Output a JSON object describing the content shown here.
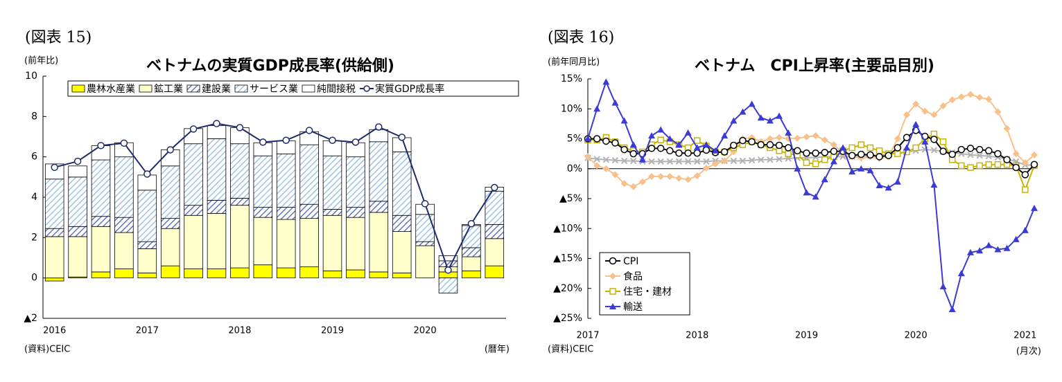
{
  "chart_data": [
    {
      "type": "bar",
      "stacked": true,
      "figure_label": "(図表 15)",
      "y_label": "(前年比)",
      "title": "ベトナムの実質GDP成長率(供給側)",
      "source": "(資料)CEIC",
      "x_unit": "(暦年)",
      "legend": "top",
      "categories": [
        "2016",
        null,
        null,
        null,
        "2017",
        null,
        null,
        null,
        "2018",
        null,
        null,
        null,
        "2019",
        null,
        null,
        null,
        "2020",
        null,
        null,
        null
      ],
      "ylim": [
        -2,
        10
      ],
      "yticks": [
        {
          "value": -2,
          "label": "▲2"
        },
        0,
        2,
        4,
        6,
        8,
        10
      ],
      "series": [
        {
          "name": "農林水産業",
          "color": "#ffff00",
          "values": [
            -0.15,
            0.05,
            0.3,
            0.45,
            0.25,
            0.6,
            0.45,
            0.45,
            0.5,
            0.65,
            0.5,
            0.55,
            0.35,
            0.4,
            0.3,
            0.25,
            0.0,
            0.3,
            0.35,
            0.6
          ]
        },
        {
          "name": "鉱工業",
          "color": "#ffffcc",
          "values": [
            2.05,
            2.0,
            2.25,
            1.8,
            1.2,
            1.85,
            2.65,
            2.75,
            3.1,
            2.35,
            2.4,
            2.4,
            2.75,
            2.6,
            2.95,
            2.05,
            1.6,
            0.25,
            0.7,
            1.35
          ]
        },
        {
          "name": "建設業",
          "color": "#4a5bb5",
          "hatch": true,
          "values": [
            0.4,
            0.5,
            0.5,
            0.75,
            0.35,
            0.5,
            0.5,
            0.65,
            0.35,
            0.5,
            0.6,
            0.7,
            0.3,
            0.5,
            0.55,
            0.8,
            0.2,
            0.3,
            0.45,
            0.7
          ]
        },
        {
          "name": "サービス業",
          "color": "#8fb8e0",
          "hatch": true,
          "values": [
            2.45,
            2.45,
            2.8,
            3.0,
            2.55,
            2.6,
            3.05,
            3.05,
            2.7,
            2.55,
            2.65,
            2.95,
            2.65,
            2.5,
            2.95,
            3.15,
            1.35,
            -0.75,
            1.1,
            1.65
          ]
        },
        {
          "name": "純間接税",
          "color": "#ffffff",
          "values": [
            0.75,
            0.55,
            0.7,
            0.7,
            0.75,
            0.8,
            0.75,
            0.65,
            0.8,
            0.65,
            0.65,
            0.65,
            0.75,
            0.7,
            0.6,
            0.7,
            0.5,
            0.25,
            0.05,
            0.2
          ]
        },
        {
          "name": "実質GDP成長率",
          "type": "line",
          "marker": "circle",
          "color": "#1f2a6b",
          "values": [
            5.48,
            5.78,
            6.56,
            6.68,
            5.15,
            6.35,
            7.38,
            7.65,
            7.45,
            6.73,
            6.82,
            7.31,
            6.82,
            6.73,
            7.48,
            6.97,
            3.68,
            0.39,
            2.69,
            4.48
          ]
        }
      ]
    },
    {
      "type": "line",
      "figure_label": "(図表 16)",
      "y_label": "(前年同月比)",
      "title": "ベトナム　CPI上昇率(主要品目別)",
      "source": "(資料)CEIC",
      "x_unit": "(月次)",
      "legend": "lower left",
      "categories": [
        "2017",
        null,
        null,
        null,
        null,
        null,
        null,
        null,
        null,
        null,
        null,
        null,
        "2018",
        null,
        null,
        null,
        null,
        null,
        null,
        null,
        null,
        null,
        null,
        null,
        "2019",
        null,
        null,
        null,
        null,
        null,
        null,
        null,
        null,
        null,
        null,
        null,
        "2020",
        null,
        null,
        null,
        null,
        null,
        null,
        null,
        null,
        null,
        null,
        null,
        "2021",
        null
      ],
      "ylim": [
        -25,
        15
      ],
      "yticks": [
        {
          "value": -25,
          "label": "▲25%"
        },
        {
          "value": -20,
          "label": "▲20%"
        },
        {
          "value": -15,
          "label": "▲15%"
        },
        {
          "value": -10,
          "label": "▲10%"
        },
        {
          "value": -5,
          "label": "▲5%"
        },
        {
          "value": 0,
          "label": "0%"
        },
        {
          "value": 5,
          "label": "5%"
        },
        {
          "value": 10,
          "label": "10%"
        },
        {
          "value": 15,
          "label": "15%"
        }
      ],
      "series": [
        {
          "color": "#b3b3b3",
          "marker": "x",
          "values": [
            1.8,
            1.6,
            1.5,
            1.4,
            1.3,
            1.3,
            1.2,
            1.2,
            1.2,
            1.2,
            1.2,
            1.2,
            1.2,
            1.2,
            1.3,
            1.3,
            1.3,
            1.3,
            1.4,
            1.5,
            1.5,
            1.6,
            1.7,
            1.8,
            1.8,
            1.9,
            2.0,
            2.0,
            2.0,
            2.0,
            2.1,
            2.2,
            2.3,
            2.4,
            2.6,
            2.8,
            3.0,
            3.2,
            3.1,
            2.9,
            2.7,
            2.5,
            2.3,
            2.2,
            2.1,
            1.9,
            1.6,
            1.2,
            0.6,
            0.6
          ]
        },
        {
          "name": "食品",
          "color": "#f8c08a",
          "marker": "diamond",
          "values": [
            2.0,
            0.5,
            0.0,
            -1.0,
            -2.5,
            -3.0,
            -2.2,
            -1.3,
            -1.3,
            -1.3,
            -1.6,
            -1.8,
            -1.2,
            0.1,
            0.8,
            1.3,
            2.8,
            5.0,
            5.2,
            4.5,
            5.0,
            5.2,
            5.0,
            5.1,
            5.3,
            5.5,
            4.8,
            4.0,
            2.6,
            2.0,
            1.8,
            2.0,
            1.7,
            2.0,
            5.0,
            9.0,
            10.8,
            9.6,
            9.0,
            10.5,
            11.5,
            12.0,
            12.4,
            11.9,
            11.6,
            9.5,
            6.7,
            2.5,
            1.0,
            2.3
          ]
        },
        {
          "name": "住宅・建材",
          "color": "#c8b400",
          "marker": "square",
          "values": [
            4.8,
            4.8,
            5.2,
            4.5,
            3.5,
            3.0,
            2.8,
            4.0,
            4.8,
            4.5,
            4.0,
            3.5,
            4.7,
            3.8,
            2.8,
            2.8,
            3.5,
            4.0,
            4.5,
            4.0,
            3.5,
            3.0,
            2.5,
            2.3,
            1.0,
            0.8,
            1.5,
            2.0,
            3.0,
            3.5,
            4.0,
            3.5,
            3.0,
            2.5,
            2.5,
            2.8,
            3.5,
            5.0,
            5.8,
            4.5,
            1.5,
            0.5,
            0.2,
            0.5,
            0.7,
            0.7,
            0.7,
            0.5,
            -3.5,
            0.5
          ]
        },
        {
          "name": "CPI",
          "color": "#000000",
          "marker": "circle",
          "values": [
            5.0,
            5.0,
            4.6,
            4.3,
            3.2,
            2.5,
            2.5,
            3.4,
            3.4,
            3.0,
            2.6,
            2.6,
            2.6,
            3.1,
            2.7,
            2.8,
            3.9,
            4.7,
            4.5,
            4.0,
            4.0,
            3.9,
            3.5,
            3.0,
            2.6,
            2.6,
            2.7,
            2.9,
            2.9,
            2.2,
            2.4,
            2.3,
            2.0,
            2.2,
            3.5,
            5.2,
            6.4,
            5.4,
            4.9,
            2.9,
            2.4,
            3.2,
            3.4,
            3.2,
            3.0,
            2.5,
            1.5,
            0.2,
            -1.0,
            0.7
          ]
        },
        {
          "name": "輸送",
          "color": "#3a3ad6",
          "marker": "triangle",
          "values": [
            5.0,
            10.0,
            14.5,
            11.0,
            8.0,
            4.0,
            1.5,
            5.5,
            6.5,
            5.0,
            4.0,
            6.0,
            3.5,
            4.0,
            3.0,
            5.5,
            8.0,
            9.5,
            10.8,
            8.5,
            8.0,
            8.8,
            6.0,
            0.0,
            -4.0,
            -4.7,
            -1.8,
            1.2,
            3.5,
            -0.5,
            0.0,
            -0.3,
            -2.8,
            -3.2,
            -2.2,
            3.5,
            7.4,
            4.5,
            -2.7,
            -19.7,
            -23.5,
            -17.5,
            -14.0,
            -13.7,
            -12.8,
            -13.5,
            -13.3,
            -11.8,
            -10.3,
            -6.6
          ]
        }
      ],
      "legend_order": [
        3,
        1,
        2,
        4
      ]
    }
  ]
}
